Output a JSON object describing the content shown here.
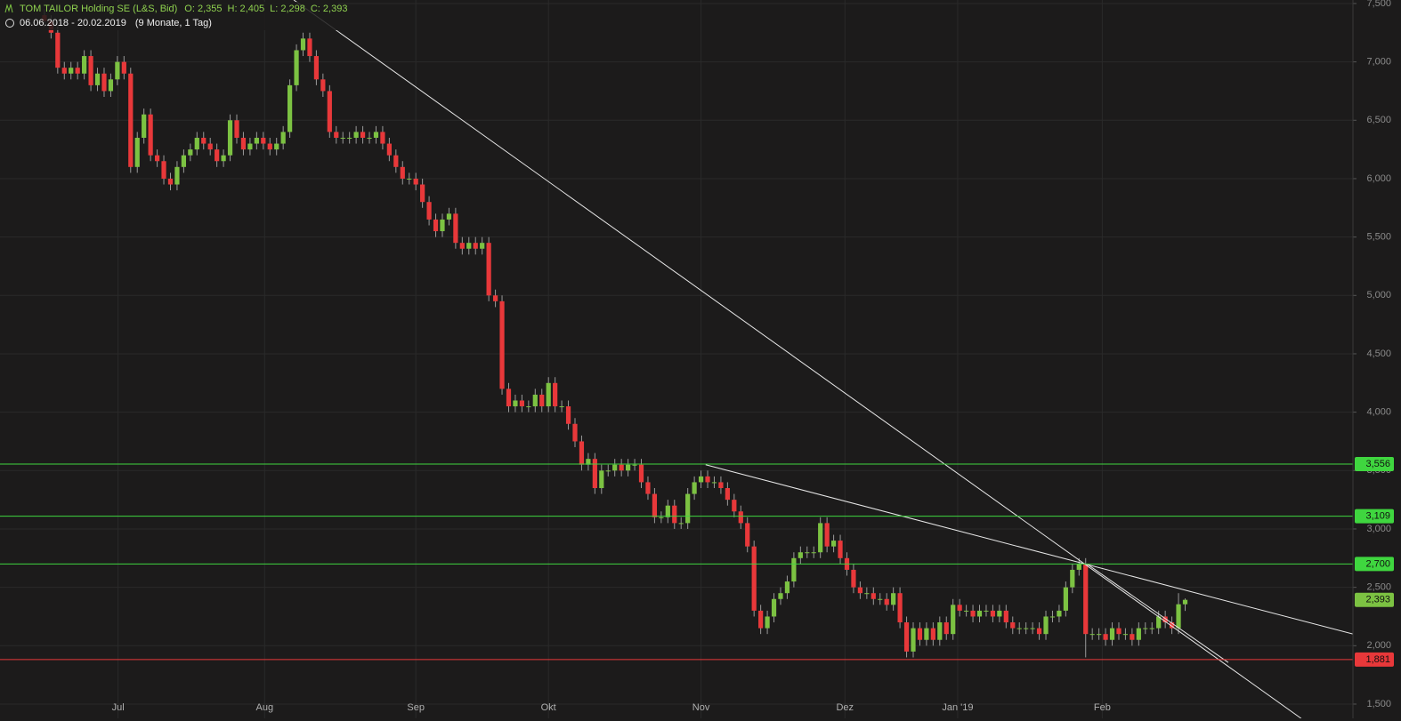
{
  "header": {
    "title": "TOM TAILOR Holding SE (L&S, Bid)",
    "open": "O: 2,355",
    "high": "H: 2,405",
    "low": "L: 2,298",
    "close": "C: 2,393",
    "range": "06.06.2018 - 20.02.2019",
    "span": "(9 Monate, 1 Tag)"
  },
  "chart_data": {
    "type": "candlestick",
    "grid": true,
    "up_color": "#7cc242",
    "down_color": "#e8383a",
    "xlim": [
      -6.7,
      197.3
    ],
    "ylim": [
      1.378,
      7.53
    ],
    "xticks": [
      {
        "value": 11.1,
        "label": "Jul"
      },
      {
        "value": 33.2,
        "label": "Aug"
      },
      {
        "value": 56,
        "label": "Sep"
      },
      {
        "value": 76,
        "label": "Okt"
      },
      {
        "value": 99,
        "label": "Nov"
      },
      {
        "value": 120.7,
        "label": "Dez"
      },
      {
        "value": 137.7,
        "label": "Jan '19"
      },
      {
        "value": 159.5,
        "label": "Feb"
      }
    ],
    "yticks": [
      {
        "value": 1.5,
        "label": "1,500"
      },
      {
        "value": 2,
        "label": "2,000"
      },
      {
        "value": 2.5,
        "label": "2,500"
      },
      {
        "value": 3,
        "label": "3,000"
      },
      {
        "value": 3.5,
        "label": "3,500"
      },
      {
        "value": 4,
        "label": "4,000"
      },
      {
        "value": 4.5,
        "label": "4,500"
      },
      {
        "value": 5,
        "label": "5,000"
      },
      {
        "value": 5.5,
        "label": "5,500"
      },
      {
        "value": 6,
        "label": "6,000"
      },
      {
        "value": 6.5,
        "label": "6,500"
      },
      {
        "value": 7,
        "label": "7,000"
      },
      {
        "value": 7.5,
        "label": "7,500"
      }
    ],
    "levels": [
      {
        "value": 3.556,
        "label": "3,556",
        "color": "#3fd63f"
      },
      {
        "value": 3.109,
        "label": "3,109",
        "color": "#3fd63f"
      },
      {
        "value": 2.7,
        "label": "2,700",
        "color": "#3fd63f"
      },
      {
        "value": 1.881,
        "label": "1,881",
        "color": "#e8383a"
      }
    ],
    "last_price": {
      "value": 2.393,
      "label": "2,393",
      "color": "#7cc242"
    },
    "trendlines": [
      [
        [
          37.6,
          7.53
        ],
        [
          189.5,
          1.377
        ]
      ],
      [
        [
          99.7,
          3.55
        ],
        [
          197.3,
          2.1
        ]
      ],
      [
        [
          157.2,
          2.7
        ],
        [
          178.5,
          1.856
        ]
      ]
    ],
    "ohlc": [
      [
        7.4,
        7.45,
        7.3,
        7.35
      ],
      [
        7.35,
        7.4,
        7.2,
        7.25
      ],
      [
        7.25,
        7.3,
        6.9,
        6.95
      ],
      [
        6.95,
        7.0,
        6.85,
        6.9
      ],
      [
        6.9,
        7.0,
        6.85,
        6.95
      ],
      [
        6.95,
        7.0,
        6.85,
        6.9
      ],
      [
        6.9,
        7.1,
        6.85,
        7.05
      ],
      [
        7.05,
        7.1,
        6.75,
        6.8
      ],
      [
        6.8,
        6.95,
        6.75,
        6.9
      ],
      [
        6.9,
        6.95,
        6.7,
        6.75
      ],
      [
        6.75,
        6.9,
        6.7,
        6.85
      ],
      [
        6.85,
        7.05,
        6.8,
        7.0
      ],
      [
        7.0,
        7.05,
        6.85,
        6.9
      ],
      [
        6.9,
        6.95,
        6.05,
        6.1
      ],
      [
        6.1,
        6.4,
        6.05,
        6.35
      ],
      [
        6.35,
        6.6,
        6.3,
        6.55
      ],
      [
        6.55,
        6.6,
        6.15,
        6.2
      ],
      [
        6.2,
        6.25,
        6.1,
        6.15
      ],
      [
        6.15,
        6.2,
        5.95,
        6.0
      ],
      [
        6.0,
        6.05,
        5.9,
        5.95
      ],
      [
        5.95,
        6.15,
        5.9,
        6.1
      ],
      [
        6.1,
        6.25,
        6.05,
        6.2
      ],
      [
        6.2,
        6.3,
        6.15,
        6.25
      ],
      [
        6.25,
        6.4,
        6.2,
        6.35
      ],
      [
        6.35,
        6.4,
        6.25,
        6.3
      ],
      [
        6.3,
        6.35,
        6.2,
        6.25
      ],
      [
        6.25,
        6.3,
        6.1,
        6.15
      ],
      [
        6.15,
        6.25,
        6.1,
        6.2
      ],
      [
        6.2,
        6.55,
        6.15,
        6.5
      ],
      [
        6.5,
        6.55,
        6.3,
        6.35
      ],
      [
        6.35,
        6.4,
        6.2,
        6.25
      ],
      [
        6.25,
        6.35,
        6.2,
        6.3
      ],
      [
        6.3,
        6.4,
        6.25,
        6.35
      ],
      [
        6.35,
        6.4,
        6.25,
        6.3
      ],
      [
        6.3,
        6.35,
        6.2,
        6.25
      ],
      [
        6.25,
        6.35,
        6.2,
        6.3
      ],
      [
        6.3,
        6.45,
        6.25,
        6.4
      ],
      [
        6.4,
        6.85,
        6.35,
        6.8
      ],
      [
        6.8,
        7.15,
        6.75,
        7.1
      ],
      [
        7.1,
        7.25,
        7.05,
        7.2
      ],
      [
        7.2,
        7.25,
        7.0,
        7.05
      ],
      [
        7.05,
        7.1,
        6.8,
        6.85
      ],
      [
        6.85,
        6.9,
        6.7,
        6.75
      ],
      [
        6.75,
        6.8,
        6.35,
        6.4
      ],
      [
        6.4,
        6.45,
        6.3,
        6.35
      ],
      [
        6.35,
        6.4,
        6.3,
        6.35
      ],
      [
        6.35,
        6.4,
        6.3,
        6.35
      ],
      [
        6.35,
        6.45,
        6.3,
        6.4
      ],
      [
        6.4,
        6.45,
        6.3,
        6.35
      ],
      [
        6.35,
        6.4,
        6.3,
        6.35
      ],
      [
        6.35,
        6.45,
        6.3,
        6.4
      ],
      [
        6.4,
        6.45,
        6.25,
        6.3
      ],
      [
        6.3,
        6.35,
        6.15,
        6.2
      ],
      [
        6.2,
        6.25,
        6.05,
        6.1
      ],
      [
        6.1,
        6.15,
        5.95,
        6.0
      ],
      [
        6.0,
        6.05,
        5.95,
        6.0
      ],
      [
        6.0,
        6.05,
        5.9,
        5.95
      ],
      [
        5.95,
        6.0,
        5.75,
        5.8
      ],
      [
        5.8,
        5.85,
        5.6,
        5.65
      ],
      [
        5.65,
        5.7,
        5.5,
        5.55
      ],
      [
        5.55,
        5.7,
        5.5,
        5.65
      ],
      [
        5.65,
        5.75,
        5.6,
        5.7
      ],
      [
        5.7,
        5.75,
        5.4,
        5.45
      ],
      [
        5.45,
        5.5,
        5.35,
        5.4
      ],
      [
        5.4,
        5.5,
        5.35,
        5.45
      ],
      [
        5.45,
        5.5,
        5.35,
        5.4
      ],
      [
        5.4,
        5.5,
        5.35,
        5.45
      ],
      [
        5.45,
        5.5,
        4.95,
        5.0
      ],
      [
        5.0,
        5.05,
        4.9,
        4.95
      ],
      [
        4.95,
        5.0,
        4.15,
        4.2
      ],
      [
        4.2,
        4.25,
        4.0,
        4.05
      ],
      [
        4.05,
        4.15,
        4.0,
        4.1
      ],
      [
        4.1,
        4.15,
        4.0,
        4.05
      ],
      [
        4.05,
        4.1,
        4.0,
        4.05
      ],
      [
        4.05,
        4.2,
        4.0,
        4.15
      ],
      [
        4.15,
        4.2,
        4.0,
        4.05
      ],
      [
        4.05,
        4.3,
        4.0,
        4.25
      ],
      [
        4.25,
        4.3,
        4.0,
        4.05
      ],
      [
        4.05,
        4.1,
        4.0,
        4.05
      ],
      [
        4.05,
        4.1,
        3.85,
        3.9
      ],
      [
        3.9,
        3.95,
        3.7,
        3.75
      ],
      [
        3.75,
        3.8,
        3.5,
        3.55
      ],
      [
        3.55,
        3.65,
        3.5,
        3.6
      ],
      [
        3.6,
        3.65,
        3.3,
        3.35
      ],
      [
        3.35,
        3.55,
        3.3,
        3.5
      ],
      [
        3.5,
        3.55,
        3.45,
        3.5
      ],
      [
        3.5,
        3.6,
        3.45,
        3.55
      ],
      [
        3.55,
        3.6,
        3.45,
        3.5
      ],
      [
        3.5,
        3.6,
        3.45,
        3.55
      ],
      [
        3.55,
        3.6,
        3.5,
        3.55
      ],
      [
        3.55,
        3.6,
        3.35,
        3.4
      ],
      [
        3.4,
        3.45,
        3.25,
        3.3
      ],
      [
        3.3,
        3.35,
        3.05,
        3.1
      ],
      [
        3.1,
        3.15,
        3.05,
        3.1
      ],
      [
        3.1,
        3.25,
        3.05,
        3.2
      ],
      [
        3.2,
        3.25,
        3.0,
        3.05
      ],
      [
        3.05,
        3.1,
        3.0,
        3.05
      ],
      [
        3.05,
        3.35,
        3.0,
        3.3
      ],
      [
        3.3,
        3.45,
        3.25,
        3.4
      ],
      [
        3.4,
        3.5,
        3.35,
        3.45
      ],
      [
        3.45,
        3.5,
        3.35,
        3.4
      ],
      [
        3.4,
        3.45,
        3.35,
        3.4
      ],
      [
        3.4,
        3.45,
        3.3,
        3.35
      ],
      [
        3.35,
        3.4,
        3.2,
        3.25
      ],
      [
        3.25,
        3.3,
        3.1,
        3.15
      ],
      [
        3.15,
        3.2,
        3.0,
        3.05
      ],
      [
        3.05,
        3.1,
        2.8,
        2.85
      ],
      [
        2.85,
        2.9,
        2.25,
        2.3
      ],
      [
        2.3,
        2.35,
        2.1,
        2.15
      ],
      [
        2.15,
        2.3,
        2.1,
        2.25
      ],
      [
        2.25,
        2.45,
        2.2,
        2.4
      ],
      [
        2.4,
        2.5,
        2.35,
        2.45
      ],
      [
        2.45,
        2.6,
        2.4,
        2.55
      ],
      [
        2.55,
        2.8,
        2.5,
        2.75
      ],
      [
        2.75,
        2.85,
        2.7,
        2.8
      ],
      [
        2.8,
        2.85,
        2.75,
        2.8
      ],
      [
        2.8,
        2.85,
        2.75,
        2.8
      ],
      [
        2.8,
        3.1,
        2.75,
        3.05
      ],
      [
        3.05,
        3.1,
        2.8,
        2.85
      ],
      [
        2.85,
        2.95,
        2.8,
        2.9
      ],
      [
        2.9,
        2.95,
        2.7,
        2.75
      ],
      [
        2.75,
        2.8,
        2.6,
        2.65
      ],
      [
        2.65,
        2.7,
        2.45,
        2.5
      ],
      [
        2.5,
        2.55,
        2.4,
        2.45
      ],
      [
        2.45,
        2.5,
        2.4,
        2.45
      ],
      [
        2.45,
        2.5,
        2.35,
        2.4
      ],
      [
        2.4,
        2.45,
        2.35,
        2.4
      ],
      [
        2.4,
        2.45,
        2.3,
        2.35
      ],
      [
        2.35,
        2.5,
        2.3,
        2.45
      ],
      [
        2.45,
        2.5,
        2.15,
        2.2
      ],
      [
        2.2,
        2.25,
        1.9,
        1.95
      ],
      [
        1.95,
        2.2,
        1.9,
        2.15
      ],
      [
        2.15,
        2.2,
        2.0,
        2.05
      ],
      [
        2.05,
        2.2,
        2.0,
        2.15
      ],
      [
        2.15,
        2.2,
        2.0,
        2.05
      ],
      [
        2.05,
        2.25,
        2.0,
        2.2
      ],
      [
        2.2,
        2.25,
        2.05,
        2.1
      ],
      [
        2.1,
        2.4,
        2.05,
        2.35
      ],
      [
        2.35,
        2.4,
        2.25,
        2.3
      ],
      [
        2.3,
        2.35,
        2.25,
        2.3
      ],
      [
        2.3,
        2.35,
        2.2,
        2.25
      ],
      [
        2.25,
        2.35,
        2.2,
        2.3
      ],
      [
        2.3,
        2.35,
        2.25,
        2.3
      ],
      [
        2.3,
        2.35,
        2.2,
        2.25
      ],
      [
        2.25,
        2.35,
        2.2,
        2.3
      ],
      [
        2.3,
        2.35,
        2.15,
        2.2
      ],
      [
        2.2,
        2.25,
        2.1,
        2.15
      ],
      [
        2.15,
        2.2,
        2.1,
        2.15
      ],
      [
        2.15,
        2.2,
        2.1,
        2.15
      ],
      [
        2.15,
        2.2,
        2.1,
        2.15
      ],
      [
        2.15,
        2.2,
        2.05,
        2.1
      ],
      [
        2.1,
        2.3,
        2.05,
        2.25
      ],
      [
        2.25,
        2.3,
        2.2,
        2.25
      ],
      [
        2.25,
        2.35,
        2.2,
        2.3
      ],
      [
        2.3,
        2.55,
        2.25,
        2.5
      ],
      [
        2.5,
        2.7,
        2.45,
        2.65
      ],
      [
        2.65,
        2.75,
        2.6,
        2.7
      ],
      [
        2.7,
        2.75,
        1.9,
        2.1
      ],
      [
        2.1,
        2.15,
        2.05,
        2.1
      ],
      [
        2.1,
        2.15,
        2.05,
        2.1
      ],
      [
        2.1,
        2.15,
        2.0,
        2.05
      ],
      [
        2.05,
        2.2,
        2.0,
        2.15
      ],
      [
        2.15,
        2.2,
        2.05,
        2.1
      ],
      [
        2.1,
        2.15,
        2.05,
        2.1
      ],
      [
        2.1,
        2.15,
        2.0,
        2.05
      ],
      [
        2.05,
        2.2,
        2.0,
        2.15
      ],
      [
        2.15,
        2.2,
        2.1,
        2.15
      ],
      [
        2.15,
        2.2,
        2.1,
        2.15
      ],
      [
        2.15,
        2.3,
        2.1,
        2.25
      ],
      [
        2.25,
        2.3,
        2.15,
        2.2
      ],
      [
        2.2,
        2.25,
        2.1,
        2.15
      ],
      [
        2.15,
        2.45,
        2.1,
        2.355
      ],
      [
        2.355,
        2.405,
        2.298,
        2.393
      ]
    ]
  }
}
